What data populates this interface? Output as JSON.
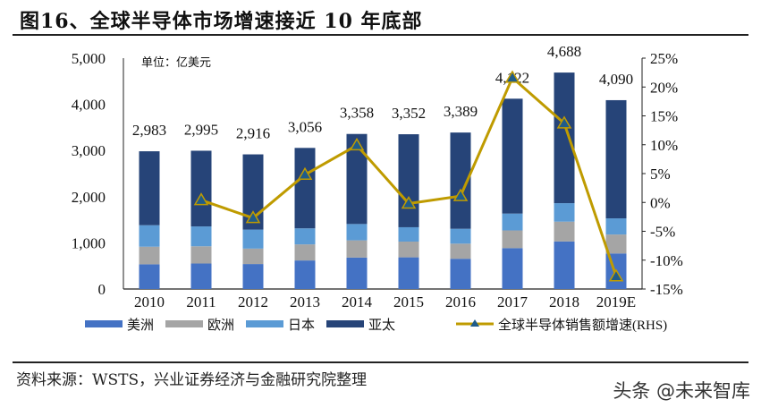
{
  "header": {
    "title": "图16、全球半导体市场增速接近 10 年底部"
  },
  "footer": {
    "source": "资料来源：WSTS，兴业证券经济与金融研究院整理",
    "watermark": "头条 @未来智库"
  },
  "chart_data": {
    "type": "bar",
    "stacked": true,
    "unit_label": "单位：亿美元",
    "categories": [
      "2010",
      "2011",
      "2012",
      "2013",
      "2014",
      "2015",
      "2016",
      "2017",
      "2018",
      "2019E"
    ],
    "totals": [
      2983,
      2995,
      2916,
      3056,
      3358,
      3352,
      3389,
      4122,
      4688,
      4090
    ],
    "total_labels": [
      "2,983",
      "2,995",
      "2,916",
      "3,056",
      "3,358",
      "3,352",
      "3,389",
      "4,122",
      "4,688",
      "4,090"
    ],
    "series": [
      {
        "name": "美洲",
        "color": "#4472C4",
        "values": [
          535,
          552,
          541,
          618,
          681,
          686,
          655,
          886,
          1030,
          770
        ]
      },
      {
        "name": "欧洲",
        "color": "#A5A5A5",
        "values": [
          381,
          373,
          334,
          348,
          373,
          341,
          327,
          383,
          429,
          410
        ]
      },
      {
        "name": "日本",
        "color": "#5B9BD5",
        "values": [
          466,
          430,
          412,
          348,
          354,
          311,
          323,
          365,
          400,
          350
        ]
      },
      {
        "name": "亚太",
        "color": "#264478",
        "values": [
          1601,
          1640,
          1629,
          1742,
          1950,
          2014,
          2084,
          2488,
          2829,
          2560
        ]
      }
    ],
    "line_series": {
      "name": "全球半导体销售额增速(RHS)",
      "color": "#BF9B00",
      "marker": "triangle",
      "marker_color": "#1F5C8A",
      "values": [
        null,
        0.4,
        -2.7,
        4.8,
        9.9,
        -0.2,
        1.1,
        21.6,
        13.7,
        -12.8
      ]
    },
    "y_left": {
      "range": [
        0,
        5000
      ],
      "ticks": [
        "0",
        "1,000",
        "2,000",
        "3,000",
        "4,000",
        "5,000"
      ]
    },
    "y_right": {
      "range": [
        -15,
        25
      ],
      "ticks": [
        "-15%",
        "-10%",
        "-5%",
        "0%",
        "5%",
        "10%",
        "15%",
        "20%",
        "25%"
      ]
    },
    "grid": false,
    "legend_position": "bottom"
  }
}
